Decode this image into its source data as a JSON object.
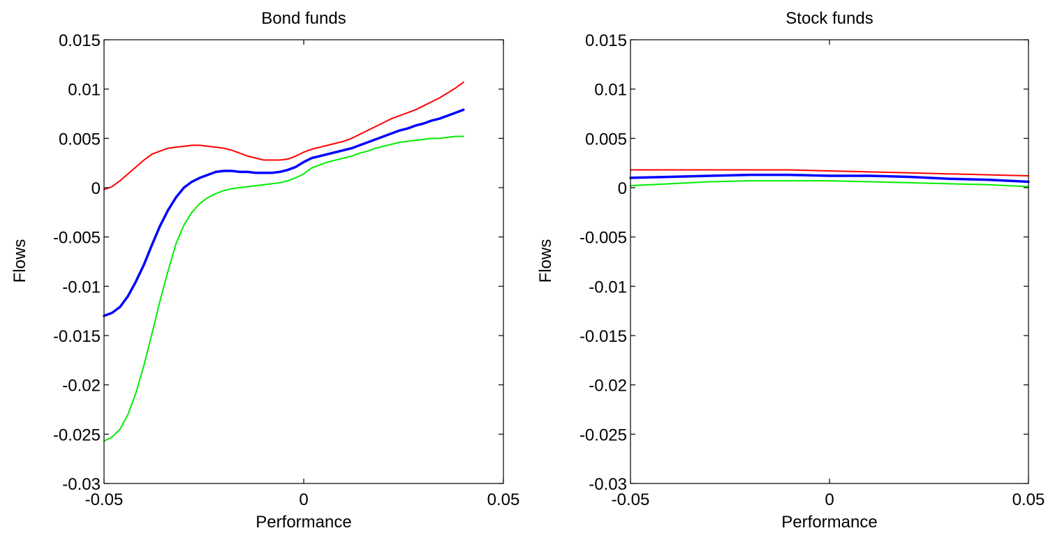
{
  "chart_data": [
    {
      "type": "line",
      "title": "Bond funds",
      "xlabel": "Performance",
      "ylabel": "Flows",
      "xlim": [
        -0.05,
        0.05
      ],
      "ylim": [
        -0.03,
        0.015
      ],
      "xticks": [
        -0.05,
        0,
        0.05
      ],
      "xtick_labels": [
        "-0.05",
        "0",
        "0.05"
      ],
      "yticks": [
        0.015,
        0.01,
        0.005,
        0,
        -0.005,
        -0.01,
        -0.015,
        -0.02,
        -0.025,
        -0.03
      ],
      "ytick_labels": [
        "0.015",
        "0.01",
        "0.005",
        "0",
        "-0.005",
        "-0.01",
        "-0.015",
        "-0.02",
        "-0.025",
        "-0.03"
      ],
      "grid": false,
      "series": [
        {
          "color": "#ff0000",
          "line_width": 2,
          "x": [
            -0.05,
            -0.048,
            -0.046,
            -0.044,
            -0.042,
            -0.04,
            -0.038,
            -0.036,
            -0.034,
            -0.032,
            -0.03,
            -0.028,
            -0.026,
            -0.024,
            -0.022,
            -0.02,
            -0.018,
            -0.016,
            -0.014,
            -0.012,
            -0.01,
            -0.008,
            -0.006,
            -0.004,
            -0.002,
            0,
            0.002,
            0.004,
            0.006,
            0.008,
            0.01,
            0.012,
            0.014,
            0.016,
            0.018,
            0.02,
            0.022,
            0.024,
            0.026,
            0.028,
            0.03,
            0.032,
            0.034,
            0.036,
            0.038,
            0.04
          ],
          "values": [
            -0.0002,
            0.0001,
            0.0007,
            0.0014,
            0.0021,
            0.0028,
            0.0034,
            0.0037,
            0.004,
            0.0041,
            0.0042,
            0.0043,
            0.0043,
            0.0042,
            0.0041,
            0.004,
            0.0038,
            0.0035,
            0.0032,
            0.003,
            0.0028,
            0.0028,
            0.0028,
            0.0029,
            0.0032,
            0.0036,
            0.0039,
            0.0041,
            0.0043,
            0.0045,
            0.0047,
            0.005,
            0.0054,
            0.0058,
            0.0062,
            0.0066,
            0.007,
            0.0073,
            0.0076,
            0.0079,
            0.0083,
            0.0087,
            0.0091,
            0.0096,
            0.0101,
            0.0107
          ]
        },
        {
          "color": "#0000ff",
          "line_width": 3.5,
          "x": [
            -0.05,
            -0.048,
            -0.046,
            -0.044,
            -0.042,
            -0.04,
            -0.038,
            -0.036,
            -0.034,
            -0.032,
            -0.03,
            -0.028,
            -0.026,
            -0.024,
            -0.022,
            -0.02,
            -0.018,
            -0.016,
            -0.014,
            -0.012,
            -0.01,
            -0.008,
            -0.006,
            -0.004,
            -0.002,
            0,
            0.002,
            0.004,
            0.006,
            0.008,
            0.01,
            0.012,
            0.014,
            0.016,
            0.018,
            0.02,
            0.022,
            0.024,
            0.026,
            0.028,
            0.03,
            0.032,
            0.034,
            0.036,
            0.038,
            0.04
          ],
          "values": [
            -0.013,
            -0.0127,
            -0.0121,
            -0.011,
            -0.0095,
            -0.0078,
            -0.0058,
            -0.0039,
            -0.0023,
            -0.001,
            0.0,
            0.0006,
            0.001,
            0.0013,
            0.0016,
            0.0017,
            0.0017,
            0.0016,
            0.0016,
            0.0015,
            0.0015,
            0.0015,
            0.0016,
            0.0018,
            0.0021,
            0.0026,
            0.003,
            0.0032,
            0.0034,
            0.0036,
            0.0038,
            0.004,
            0.0043,
            0.0046,
            0.0049,
            0.0052,
            0.0055,
            0.0058,
            0.006,
            0.0063,
            0.0065,
            0.0068,
            0.007,
            0.0073,
            0.0076,
            0.0079
          ]
        },
        {
          "color": "#00ee00",
          "line_width": 2,
          "x": [
            -0.05,
            -0.048,
            -0.046,
            -0.044,
            -0.042,
            -0.04,
            -0.038,
            -0.036,
            -0.034,
            -0.032,
            -0.03,
            -0.028,
            -0.026,
            -0.024,
            -0.022,
            -0.02,
            -0.018,
            -0.016,
            -0.014,
            -0.012,
            -0.01,
            -0.008,
            -0.006,
            -0.004,
            -0.002,
            0,
            0.002,
            0.004,
            0.006,
            0.008,
            0.01,
            0.012,
            0.014,
            0.016,
            0.018,
            0.02,
            0.022,
            0.024,
            0.026,
            0.028,
            0.03,
            0.032,
            0.034,
            0.036,
            0.038,
            0.04
          ],
          "values": [
            -0.0257,
            -0.0253,
            -0.0245,
            -0.023,
            -0.0208,
            -0.018,
            -0.0148,
            -0.0115,
            -0.0085,
            -0.0057,
            -0.0038,
            -0.0025,
            -0.0016,
            -0.001,
            -0.0006,
            -0.0003,
            -0.0001,
            0.0,
            0.0001,
            0.0002,
            0.0003,
            0.0004,
            0.0005,
            0.0007,
            0.001,
            0.0014,
            0.002,
            0.0023,
            0.0026,
            0.0028,
            0.003,
            0.0032,
            0.0035,
            0.0037,
            0.004,
            0.0042,
            0.0044,
            0.0046,
            0.0047,
            0.0048,
            0.0049,
            0.005,
            0.005,
            0.0051,
            0.0052,
            0.0052
          ]
        }
      ]
    },
    {
      "type": "line",
      "title": "Stock funds",
      "xlabel": "Performance",
      "ylabel": "Flows",
      "xlim": [
        -0.05,
        0.05
      ],
      "ylim": [
        -0.03,
        0.015
      ],
      "xticks": [
        -0.05,
        0,
        0.05
      ],
      "xtick_labels": [
        "-0.05",
        "0",
        "0.05"
      ],
      "yticks": [
        0.015,
        0.01,
        0.005,
        0,
        -0.005,
        -0.01,
        -0.015,
        -0.02,
        -0.025,
        -0.03
      ],
      "ytick_labels": [
        "0.015",
        "0.01",
        "0.005",
        "0",
        "-0.005",
        "-0.01",
        "-0.015",
        "-0.02",
        "-0.025",
        "-0.03"
      ],
      "grid": false,
      "series": [
        {
          "color": "#ff0000",
          "line_width": 2,
          "x": [
            -0.05,
            -0.04,
            -0.03,
            -0.02,
            -0.01,
            0,
            0.01,
            0.02,
            0.03,
            0.04,
            0.05
          ],
          "values": [
            0.0018,
            0.0018,
            0.0018,
            0.0018,
            0.0018,
            0.0017,
            0.0016,
            0.0015,
            0.0014,
            0.0013,
            0.0012
          ]
        },
        {
          "color": "#0000ff",
          "line_width": 3.5,
          "x": [
            -0.05,
            -0.04,
            -0.03,
            -0.02,
            -0.01,
            0,
            0.01,
            0.02,
            0.03,
            0.04,
            0.05
          ],
          "values": [
            0.001,
            0.0011,
            0.0012,
            0.0013,
            0.0013,
            0.0012,
            0.0012,
            0.0011,
            0.0009,
            0.0008,
            0.0006
          ]
        },
        {
          "color": "#00ee00",
          "line_width": 2,
          "x": [
            -0.05,
            -0.04,
            -0.03,
            -0.02,
            -0.01,
            0,
            0.01,
            0.02,
            0.03,
            0.04,
            0.05
          ],
          "values": [
            0.0002,
            0.0004,
            0.0006,
            0.0007,
            0.0007,
            0.0007,
            0.0006,
            0.0005,
            0.0004,
            0.0003,
            0.0001
          ]
        }
      ]
    }
  ]
}
